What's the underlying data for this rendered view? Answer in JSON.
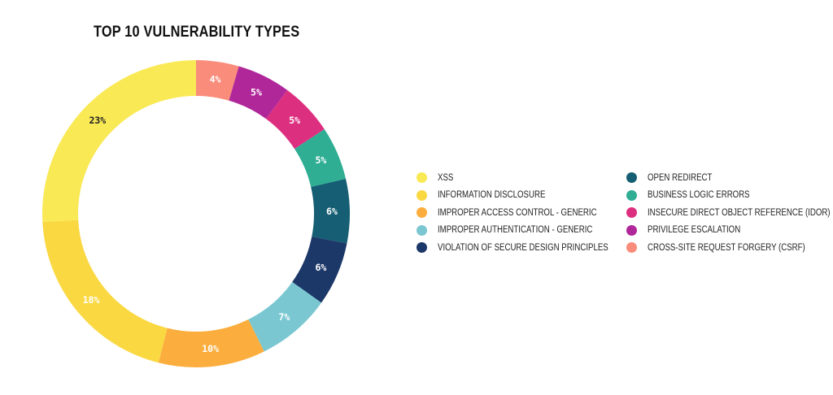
{
  "chart_data": {
    "type": "pie",
    "title": "TOP 10 VULNERABILITY TYPES",
    "slices": [
      {
        "label": "CROSS-SITE REQUEST FORGERY (CSRF)",
        "value": 4,
        "value_label": "4%",
        "color": "#f98c7b",
        "text_color": "#ffffff"
      },
      {
        "label": "PRIVILEGE ESCALATION",
        "value": 5,
        "value_label": "5%",
        "color": "#b0279a",
        "text_color": "#ffffff"
      },
      {
        "label": "INSECURE DIRECT OBJECT REFERENCE (IDOR)",
        "value": 5,
        "value_label": "5%",
        "color": "#dd2f80",
        "text_color": "#ffffff"
      },
      {
        "label": "BUSINESS LOGIC ERRORS",
        "value": 5,
        "value_label": "5%",
        "color": "#2fae94",
        "text_color": "#ffffff"
      },
      {
        "label": "OPEN REDIRECT",
        "value": 6,
        "value_label": "6%",
        "color": "#155e73",
        "text_color": "#ffffff"
      },
      {
        "label": "VIOLATION OF SECURE DESIGN PRINCIPLES",
        "value": 6,
        "value_label": "6%",
        "color": "#1c3869",
        "text_color": "#ffffff"
      },
      {
        "label": "IMPROPER AUTHENTICATION - GENERIC",
        "value": 7,
        "value_label": "7%",
        "color": "#7ac7d2",
        "text_color": "#ffffff"
      },
      {
        "label": "IMPROPER ACCESS CONTROL - GENERIC",
        "value": 10,
        "value_label": "10%",
        "color": "#fbae3e",
        "text_color": "#ffffff"
      },
      {
        "label": "INFORMATION DISCLOSURE",
        "value": 18,
        "value_label": "18%",
        "color": "#fad842",
        "text_color": "#ffffff"
      },
      {
        "label": "XSS",
        "value": 23,
        "value_label": "23%",
        "color": "#f9e955",
        "text_color": "#222222"
      }
    ],
    "legend": {
      "placement": "right",
      "left_column": [
        {
          "label": "XSS",
          "color": "#f9e955"
        },
        {
          "label": "INFORMATION DISCLOSURE",
          "color": "#fad842"
        },
        {
          "label": "IMPROPER ACCESS CONTROL - GENERIC",
          "color": "#fbae3e"
        },
        {
          "label": "IMPROPER AUTHENTICATION - GENERIC",
          "color": "#7ac7d2"
        },
        {
          "label": "VIOLATION OF SECURE DESIGN PRINCIPLES",
          "color": "#1c3869"
        }
      ],
      "right_column": [
        {
          "label": "OPEN REDIRECT",
          "color": "#155e73"
        },
        {
          "label": "BUSINESS LOGIC ERRORS",
          "color": "#2fae94"
        },
        {
          "label": "INSECURE DIRECT OBJECT REFERENCE (IDOR)",
          "color": "#dd2f80"
        },
        {
          "label": "PRIVILEGE ESCALATION",
          "color": "#b0279a"
        },
        {
          "label": "CROSS-SITE REQUEST FORGERY (CSRF)",
          "color": "#f98c7b"
        }
      ]
    }
  }
}
